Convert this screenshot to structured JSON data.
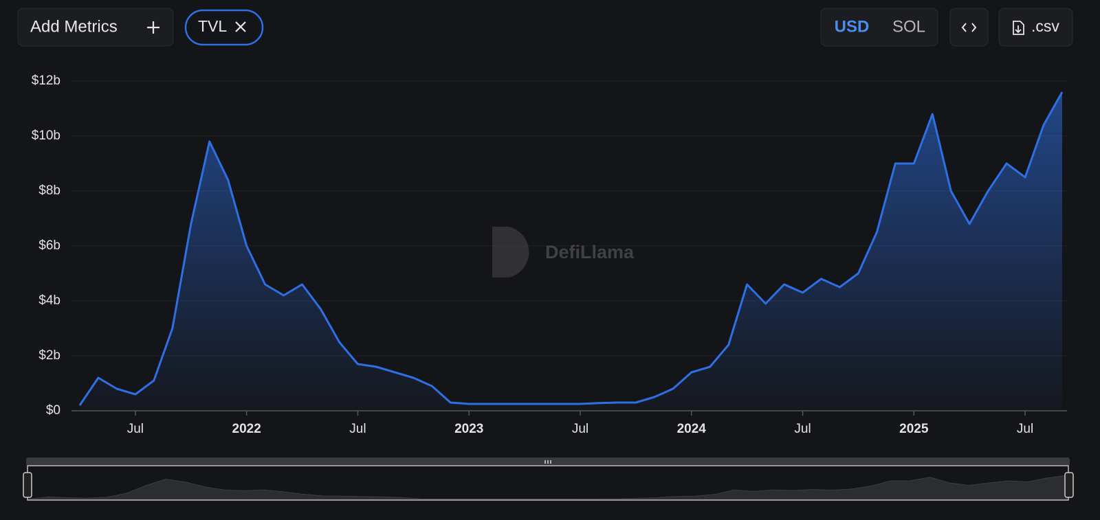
{
  "chart_data": {
    "type": "area",
    "x": [
      "2021-04",
      "2021-05",
      "2021-06",
      "2021-07",
      "2021-08",
      "2021-09",
      "2021-10",
      "2021-11",
      "2021-12",
      "2022-01",
      "2022-02",
      "2022-03",
      "2022-04",
      "2022-05",
      "2022-06",
      "2022-07",
      "2022-08",
      "2022-09",
      "2022-10",
      "2022-11",
      "2022-12",
      "2023-01",
      "2023-02",
      "2023-03",
      "2023-04",
      "2023-05",
      "2023-06",
      "2023-07",
      "2023-08",
      "2023-09",
      "2023-10",
      "2023-11",
      "2023-12",
      "2024-01",
      "2024-02",
      "2024-03",
      "2024-04",
      "2024-05",
      "2024-06",
      "2024-07",
      "2024-08",
      "2024-09",
      "2024-10",
      "2024-11",
      "2024-12",
      "2025-01",
      "2025-02",
      "2025-03",
      "2025-04",
      "2025-05",
      "2025-06",
      "2025-07",
      "2025-08",
      "2025-09"
    ],
    "series": [
      {
        "name": "TVL",
        "color": "#2f6fe4",
        "values": [
          0.2,
          1.2,
          0.8,
          0.6,
          1.1,
          3.0,
          6.8,
          9.8,
          8.4,
          6.0,
          4.6,
          4.2,
          4.6,
          3.7,
          2.5,
          1.7,
          1.6,
          1.4,
          1.2,
          0.9,
          0.3,
          0.25,
          0.25,
          0.25,
          0.25,
          0.25,
          0.25,
          0.25,
          0.28,
          0.3,
          0.3,
          0.5,
          0.8,
          1.4,
          1.6,
          2.4,
          4.6,
          3.9,
          4.6,
          4.3,
          4.8,
          4.5,
          5.0,
          6.5,
          9.0,
          9.0,
          10.8,
          8.0,
          6.8,
          8.0,
          9.0,
          8.5,
          10.4,
          11.6
        ]
      }
    ],
    "xlim": [
      "2021-04",
      "2025-09"
    ],
    "xticks": [
      {
        "value": "2021-07",
        "label": "Jul"
      },
      {
        "value": "2022-01",
        "label": "2022"
      },
      {
        "value": "2022-07",
        "label": "Jul"
      },
      {
        "value": "2023-01",
        "label": "2023"
      },
      {
        "value": "2023-07",
        "label": "Jul"
      },
      {
        "value": "2024-01",
        "label": "2024"
      },
      {
        "value": "2024-07",
        "label": "Jul"
      },
      {
        "value": "2025-01",
        "label": "2025"
      },
      {
        "value": "2025-07",
        "label": "Jul"
      }
    ],
    "ylim": [
      0,
      12
    ],
    "yticks": [
      {
        "value": 0,
        "label": "$0"
      },
      {
        "value": 2,
        "label": "$2b"
      },
      {
        "value": 4,
        "label": "$4b"
      },
      {
        "value": 6,
        "label": "$6b"
      },
      {
        "value": 8,
        "label": "$8b"
      },
      {
        "value": 10,
        "label": "$10b"
      },
      {
        "value": 12,
        "label": "$12b"
      }
    ],
    "grid": true,
    "watermark": "DefiLlama"
  },
  "controls": {
    "add_metrics": "Add Metrics",
    "currencies": [
      "USD",
      "SOL"
    ],
    "csv": ".csv"
  }
}
